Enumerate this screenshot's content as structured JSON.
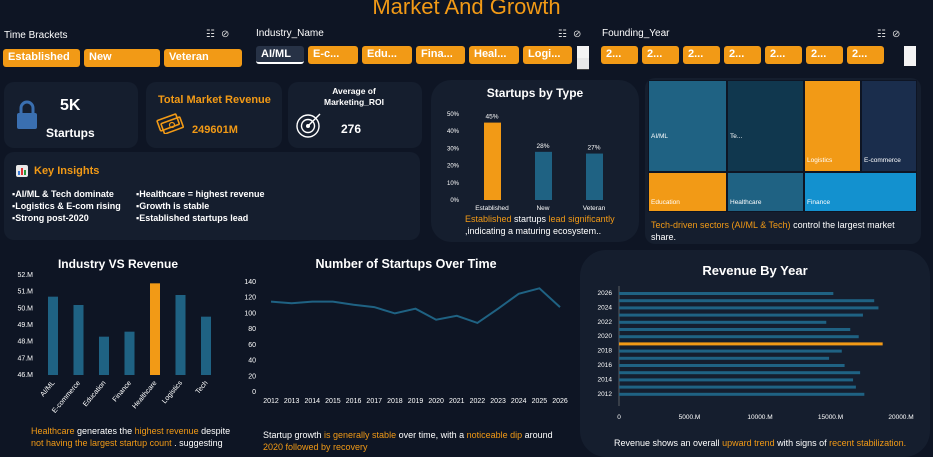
{
  "title": "Market And Growth",
  "slicers": {
    "time": {
      "label": "Time Brackets",
      "items": [
        "Established",
        "New",
        "Veteran"
      ]
    },
    "industry": {
      "label": "Industry_Name",
      "items": [
        "AI/ML",
        "E-c...",
        "Edu...",
        "Fina...",
        "Heal...",
        "Logi..."
      ]
    },
    "founding": {
      "label": "Founding_Year",
      "items": [
        "2...",
        "2...",
        "2...",
        "2...",
        "2...",
        "2...",
        "2..."
      ]
    }
  },
  "kpis": {
    "startups_value": "5K",
    "startups_label": "Startups",
    "revenue_label": "Total Market Revenue",
    "revenue_value": "249601M",
    "roi_label": "Average of Marketing_ROI",
    "roi_value": "276"
  },
  "insights": {
    "title": "Key Insights",
    "items": [
      "▪AI/ML & Tech dominate",
      "▪Healthcare = highest revenue",
      "▪Logistics & E-com rising",
      "▪Growth is stable",
      "▪Strong post-2020",
      "▪Established startups lead"
    ]
  },
  "startups_by_type": {
    "title": "Startups by Type",
    "caption_1a": "Established",
    "caption_1b": " startups ",
    "caption_1c": "lead significantly",
    "caption_2": ",indicating a maturing ecosystem.."
  },
  "treemap": {
    "caption_a": "Tech-driven sectors (AI/ML & Tech)",
    "caption_b": " control the largest market",
    "caption_c": "share.",
    "tiles": [
      "AI/ML",
      "Te...",
      "Logistics",
      "E-commerce",
      "Education",
      "Healthcare",
      "Finance"
    ]
  },
  "industry_revenue": {
    "title": "Industry VS Revenue",
    "cap_a": "Healthcare",
    "cap_b": " generates the ",
    "cap_c": "highest revenue",
    "cap_d": " despite",
    "cap_e": "not having the largest startup count",
    "cap_f": " . suggesting"
  },
  "startups_time": {
    "title": "Number of Startups Over Time",
    "cap_a": "Startup growth ",
    "cap_b": "is generally stable",
    "cap_c": " over time, with a ",
    "cap_d": "noticeable dip",
    "cap_e": " around",
    "cap_f": "2020 followed by recovery"
  },
  "revenue_year": {
    "title": "Revenue By Year",
    "cap_a": "Revenue shows an overall ",
    "cap_b": "upward trend",
    "cap_c": " with signs of ",
    "cap_d": "recent stabilization."
  },
  "colors": {
    "orange": "#f29a16",
    "teal": "#1f6283",
    "background": "#0e1524",
    "panel": "#151e2e"
  },
  "chart_data": [
    {
      "type": "bar",
      "title": "Startups by Type",
      "categories": [
        "Established",
        "New",
        "Veteran"
      ],
      "values": [
        45,
        28,
        27
      ],
      "data_labels": [
        "45%",
        "28%",
        "27%"
      ],
      "yticks": [
        "0%",
        "10%",
        "20%",
        "30%",
        "40%",
        "50%"
      ],
      "ylim": [
        0,
        50
      ],
      "highlight": "Established"
    },
    {
      "type": "bar",
      "title": "Industry VS Revenue",
      "categories": [
        "AI/ML",
        "E-commerce",
        "Education",
        "Finance",
        "Healthcare",
        "Logistics",
        "Tech"
      ],
      "values": [
        50.7,
        50.2,
        48.3,
        48.6,
        51.5,
        50.8,
        49.5
      ],
      "yticks": [
        "46.M",
        "47.M",
        "48.M",
        "49.M",
        "50.M",
        "51.M",
        "52.M"
      ],
      "ylim": [
        46,
        52
      ],
      "highlight": "Healthcare"
    },
    {
      "type": "line",
      "title": "Number of Startups Over Time",
      "x": [
        "2012",
        "2013",
        "2014",
        "2015",
        "2016",
        "2017",
        "2018",
        "2019",
        "2020",
        "2021",
        "2022",
        "2023",
        "2024",
        "2025",
        "2026"
      ],
      "values": [
        115,
        113,
        115,
        115,
        111,
        108,
        100,
        106,
        92,
        97,
        88,
        106,
        125,
        132,
        108
      ],
      "yticks": [
        "0",
        "20",
        "40",
        "60",
        "80",
        "100",
        "120",
        "140"
      ],
      "ylim": [
        0,
        140
      ]
    },
    {
      "type": "bar",
      "title": "Revenue By Year",
      "orientation": "horizontal",
      "categories": [
        "2026",
        "2025",
        "2024",
        "2023",
        "2022",
        "2021",
        "2020",
        "2019",
        "2018",
        "2017",
        "2016",
        "2015",
        "2014",
        "2013",
        "2012"
      ],
      "values": [
        15200,
        18100,
        18400,
        17300,
        14700,
        16400,
        17000,
        18700,
        15800,
        14900,
        16000,
        17100,
        16600,
        16800,
        17400
      ],
      "ytick_labels": [
        "2026",
        "2024",
        "2022",
        "2020",
        "2018",
        "2016",
        "2014",
        "2012"
      ],
      "xticks": [
        "0",
        "5000.M",
        "10000.M",
        "15000.M",
        "20000.M"
      ],
      "xlim": [
        0,
        20000
      ],
      "highlight": "2019"
    },
    {
      "type": "heatmap",
      "title": "",
      "categories": [
        "AI/ML",
        "Te...",
        "Logistics",
        "E-commerce",
        "Education",
        "Healthcare",
        "Finance"
      ]
    }
  ]
}
